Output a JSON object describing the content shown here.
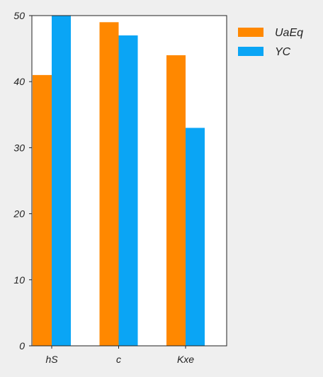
{
  "chart_data": {
    "type": "bar",
    "categories": [
      "hS",
      "c",
      "Kxe"
    ],
    "series": [
      {
        "name": "UaEq",
        "values": [
          41,
          49,
          44
        ],
        "color": "#ff8800"
      },
      {
        "name": "YC",
        "values": [
          50,
          47,
          33
        ],
        "color": "#0aa5f5"
      }
    ],
    "ylim": [
      0,
      50
    ],
    "yticks": [
      0,
      10,
      20,
      30,
      40,
      50
    ],
    "grid": false,
    "legend_position": "outside-top-right",
    "plot_background": "#ffffff",
    "page_background": "#efefef"
  }
}
